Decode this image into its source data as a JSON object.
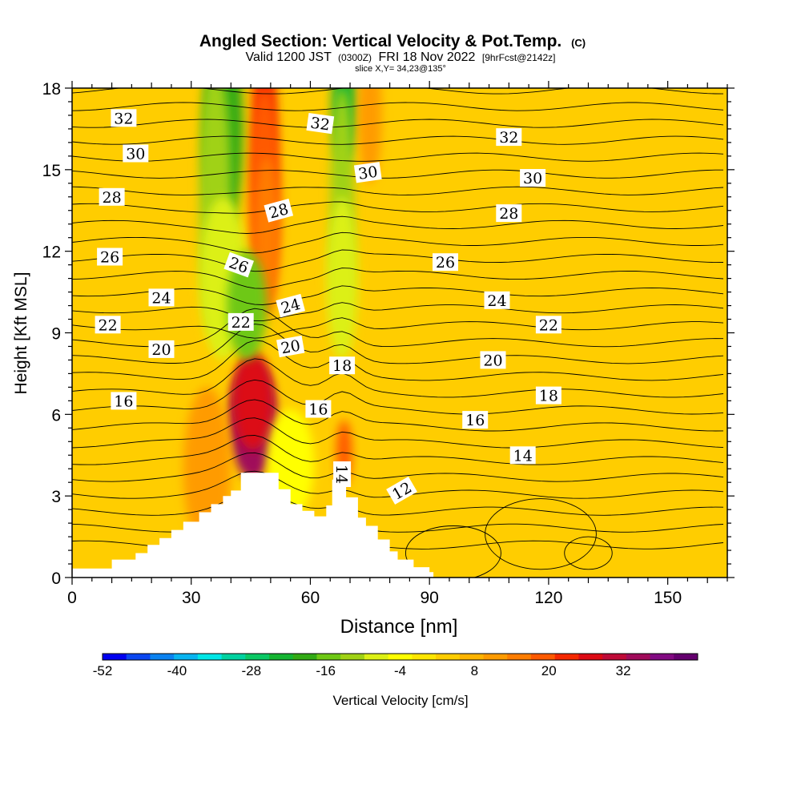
{
  "title": {
    "main": "Angled Section: Vertical Velocity & Pot.Temp.",
    "copyright": "(C)",
    "valid_prefix": "Valid 1200 JST",
    "valid_utc": "(0300Z)",
    "valid_date": "FRI 18 Nov 2022",
    "forecast": "[9hrFcst@2142z]",
    "slice": "slice X,Y= 34,23@135°"
  },
  "chart_data": {
    "type": "heatmap",
    "title": "Angled Section: Vertical Velocity & Pot.Temp.",
    "xlabel": "Distance [nm]",
    "ylabel": "Height [Kft MSL]",
    "xlim": [
      0,
      165
    ],
    "ylim": [
      0,
      18
    ],
    "xticks": [
      0,
      30,
      60,
      90,
      120,
      150
    ],
    "yticks": [
      0,
      3,
      6,
      9,
      12,
      15,
      18
    ],
    "colorbar": {
      "label": "Vertical Velocity [cm/s]",
      "tick_labels": [
        "-52",
        "-40",
        "-28",
        "-16",
        "-4",
        "8",
        "20",
        "32"
      ],
      "tick_values": [
        -52,
        -40,
        -28,
        -16,
        -4,
        8,
        20,
        32
      ],
      "range": [
        -52,
        44
      ],
      "colors": [
        "#0000f0",
        "#0a46f0",
        "#0a82f0",
        "#08b4f0",
        "#00e6e6",
        "#00d2a0",
        "#0ac864",
        "#14b432",
        "#32aa14",
        "#6ec814",
        "#a0d214",
        "#dcf014",
        "#ffff00",
        "#ffe600",
        "#ffcd00",
        "#ffb400",
        "#ff9b00",
        "#ff7d00",
        "#ff5a00",
        "#f52800",
        "#dc0a14",
        "#be0a37",
        "#a00a5a",
        "#820a82",
        "#64006e"
      ]
    },
    "velocity_features": [
      {
        "x": 45.5,
        "z": 5.8,
        "value": 34
      },
      {
        "x": 45.5,
        "z": 6.5,
        "value": 26
      },
      {
        "x": 48.5,
        "z": 17.0,
        "value": 24
      },
      {
        "x": 48.5,
        "z": 14.0,
        "value": 20
      },
      {
        "x": 49.0,
        "z": 12.5,
        "value": 14
      },
      {
        "x": 38.0,
        "z": 16.5,
        "value": -18
      },
      {
        "x": 36.0,
        "z": 14.0,
        "value": -12
      },
      {
        "x": 38.0,
        "z": 11.0,
        "value": -8
      },
      {
        "x": 44.0,
        "z": 10.0,
        "value": -16
      },
      {
        "x": 68.5,
        "z": 17.5,
        "value": -24
      },
      {
        "x": 68.0,
        "z": 14.0,
        "value": -12
      },
      {
        "x": 68.0,
        "z": 11.0,
        "value": -8
      },
      {
        "x": 68.5,
        "z": 4.6,
        "value": 18
      },
      {
        "x": 75.0,
        "z": 17.0,
        "value": 12
      },
      {
        "x": 34.0,
        "z": 4.0,
        "value": 12
      },
      {
        "x": 55.0,
        "z": 4.2,
        "value": -4
      }
    ],
    "theta_contour_labels": [
      {
        "text": "32",
        "x": 13,
        "z": 16.9,
        "angle": 0
      },
      {
        "text": "30",
        "x": 16,
        "z": 15.6,
        "angle": 0
      },
      {
        "text": "28",
        "x": 10,
        "z": 14.0,
        "angle": 0
      },
      {
        "text": "26",
        "x": 9.5,
        "z": 11.8,
        "angle": 0
      },
      {
        "text": "24",
        "x": 22.5,
        "z": 10.3,
        "angle": 0
      },
      {
        "text": "22",
        "x": 9,
        "z": 9.3,
        "angle": 0
      },
      {
        "text": "20",
        "x": 22.5,
        "z": 8.4,
        "angle": 0
      },
      {
        "text": "16",
        "x": 13,
        "z": 6.5,
        "angle": 0
      },
      {
        "text": "26",
        "x": 42,
        "z": 11.5,
        "angle": 20
      },
      {
        "text": "22",
        "x": 42.5,
        "z": 9.4,
        "angle": 0
      },
      {
        "text": "28",
        "x": 52,
        "z": 13.5,
        "angle": -15
      },
      {
        "text": "24",
        "x": 55,
        "z": 10.0,
        "angle": -15
      },
      {
        "text": "20",
        "x": 55,
        "z": 8.5,
        "angle": -10
      },
      {
        "text": "32",
        "x": 62.5,
        "z": 16.7,
        "angle": 8
      },
      {
        "text": "30",
        "x": 74.5,
        "z": 14.9,
        "angle": -8
      },
      {
        "text": "18",
        "x": 68,
        "z": 7.8,
        "angle": 0
      },
      {
        "text": "16",
        "x": 62,
        "z": 6.2,
        "angle": 0
      },
      {
        "text": "14",
        "x": 68,
        "z": 3.8,
        "angle": 90
      },
      {
        "text": "12",
        "x": 83,
        "z": 3.2,
        "angle": -30
      },
      {
        "text": "26",
        "x": 94,
        "z": 11.6,
        "angle": 0
      },
      {
        "text": "24",
        "x": 107,
        "z": 10.2,
        "angle": 0
      },
      {
        "text": "20",
        "x": 106,
        "z": 8.0,
        "angle": 0
      },
      {
        "text": "16",
        "x": 101.5,
        "z": 5.8,
        "angle": 0
      },
      {
        "text": "32",
        "x": 110,
        "z": 16.2,
        "angle": 0
      },
      {
        "text": "30",
        "x": 116,
        "z": 14.7,
        "angle": 0
      },
      {
        "text": "28",
        "x": 110,
        "z": 13.4,
        "angle": 0
      },
      {
        "text": "22",
        "x": 120,
        "z": 9.3,
        "angle": 0
      },
      {
        "text": "18",
        "x": 120,
        "z": 6.7,
        "angle": 0
      },
      {
        "text": "14",
        "x": 113.5,
        "z": 4.5,
        "angle": 0
      }
    ],
    "terrain": [
      [
        0,
        0.33
      ],
      [
        10,
        0.33
      ],
      [
        10,
        0.66
      ],
      [
        16,
        0.66
      ],
      [
        16,
        0.9
      ],
      [
        19,
        0.9
      ],
      [
        19,
        1.2
      ],
      [
        22,
        1.2
      ],
      [
        22,
        1.45
      ],
      [
        25,
        1.45
      ],
      [
        25,
        1.75
      ],
      [
        28,
        1.75
      ],
      [
        28,
        2.05
      ],
      [
        32,
        2.05
      ],
      [
        32,
        2.4
      ],
      [
        35,
        2.4
      ],
      [
        35,
        2.7
      ],
      [
        38,
        2.7
      ],
      [
        38,
        3.0
      ],
      [
        40,
        3.0
      ],
      [
        40,
        3.2
      ],
      [
        42.5,
        3.2
      ],
      [
        42.5,
        3.85
      ],
      [
        47,
        3.85
      ],
      [
        47,
        3.85
      ],
      [
        52,
        3.85
      ],
      [
        52,
        3.25
      ],
      [
        55,
        3.25
      ],
      [
        55,
        2.7
      ],
      [
        58,
        2.7
      ],
      [
        58,
        2.45
      ],
      [
        61,
        2.45
      ],
      [
        61,
        2.25
      ],
      [
        64,
        2.25
      ],
      [
        64,
        2.65
      ],
      [
        65.5,
        2.65
      ],
      [
        65.5,
        3.6
      ],
      [
        69,
        3.6
      ],
      [
        69,
        2.95
      ],
      [
        72,
        2.95
      ],
      [
        72,
        2.2
      ],
      [
        74,
        2.2
      ],
      [
        74,
        1.9
      ],
      [
        77,
        1.9
      ],
      [
        77,
        1.4
      ],
      [
        80,
        1.4
      ],
      [
        80,
        0.96
      ],
      [
        82,
        0.96
      ],
      [
        82,
        0.66
      ],
      [
        86,
        0.66
      ],
      [
        86,
        0.38
      ],
      [
        90,
        0.38
      ],
      [
        90,
        0.2
      ],
      [
        91,
        0.2
      ],
      [
        91,
        0
      ]
    ]
  }
}
